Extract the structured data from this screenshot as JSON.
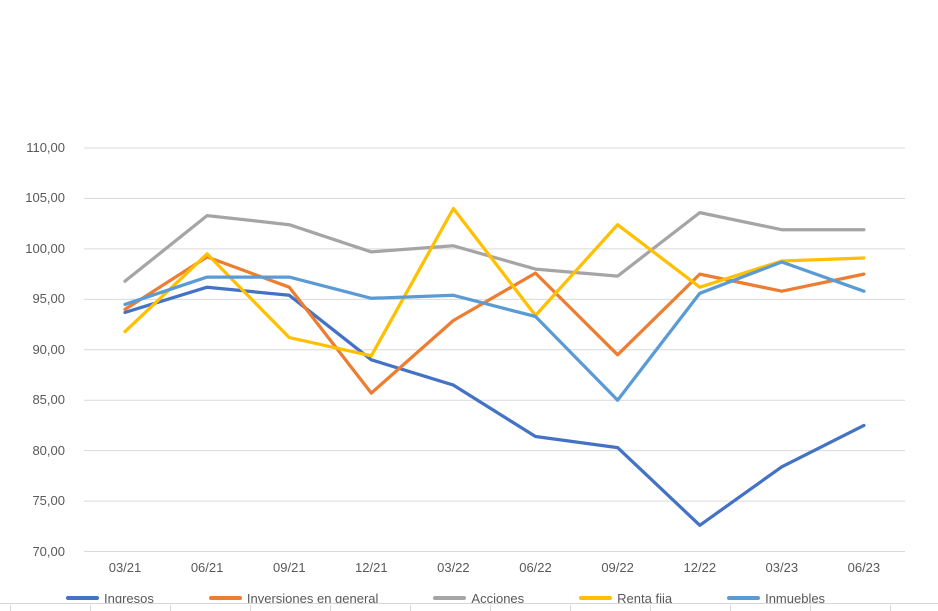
{
  "chart_data": {
    "type": "line",
    "title": "",
    "categories": [
      "03/21",
      "06/21",
      "09/21",
      "12/21",
      "03/22",
      "06/22",
      "09/22",
      "12/22",
      "03/23",
      "06/23"
    ],
    "series": [
      {
        "name": "Ingresos",
        "color": "#4472C4",
        "values": [
          93.7,
          96.2,
          95.4,
          89.0,
          86.5,
          81.4,
          80.3,
          72.6,
          78.4,
          82.5
        ]
      },
      {
        "name": "Inversiones en general",
        "color": "#ED7D31",
        "values": [
          94.0,
          99.2,
          96.2,
          85.7,
          92.9,
          97.6,
          89.5,
          97.5,
          95.8,
          97.5
        ]
      },
      {
        "name": "Acciones",
        "color": "#A5A5A5",
        "values": [
          96.8,
          103.3,
          102.4,
          99.7,
          100.3,
          98.0,
          97.3,
          103.6,
          101.9,
          101.9
        ]
      },
      {
        "name": "Renta fija",
        "color": "#FFC000",
        "values": [
          91.8,
          99.5,
          91.2,
          89.4,
          104.0,
          93.4,
          102.4,
          96.2,
          98.8,
          99.1
        ]
      },
      {
        "name": "Inmuebles",
        "color": "#5B9BD5",
        "values": [
          94.5,
          97.2,
          97.2,
          95.1,
          95.4,
          93.3,
          85.0,
          95.6,
          98.7,
          95.8
        ]
      }
    ],
    "xlabel": "",
    "ylabel": "",
    "ylim": [
      70,
      110
    ],
    "y_axis": {
      "min": 70,
      "max": 110,
      "step": 5,
      "tick_labels": [
        "110,00",
        "105,00",
        "100,00",
        "95,00",
        "90,00",
        "85,00",
        "80,00",
        "75,00",
        "70,00"
      ]
    },
    "grid": true,
    "legend_position": "bottom",
    "colors": {
      "gridline": "#D9D9D9",
      "axis_text": "#595959",
      "legend_text": "#595959"
    }
  }
}
